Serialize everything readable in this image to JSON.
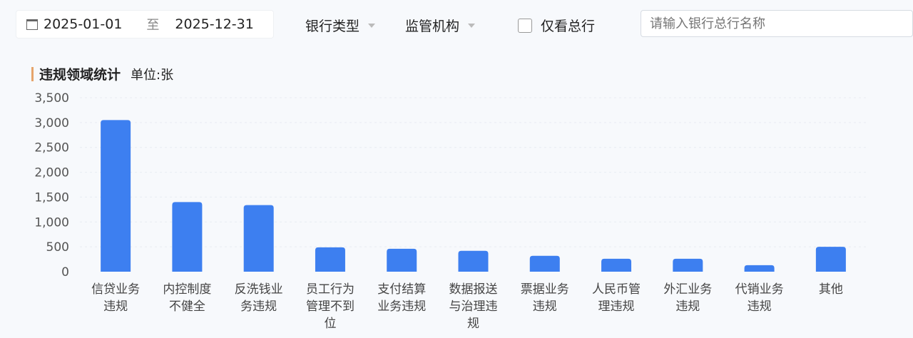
{
  "filters": {
    "date_start": "2025-01-01",
    "date_sep": "至",
    "date_end": "2025-12-31",
    "bank_type": "银行类型",
    "regulator": "监管机构",
    "head_office_only": "仅看总行",
    "head_office_checked": false,
    "search_placeholder": "请输入银行总行名称"
  },
  "chart_title": "违规领域统计",
  "unit": "单位:张",
  "colors": {
    "bar": "#3d7ff0",
    "title_accent": "#e6a46b"
  },
  "chart_data": {
    "type": "bar",
    "title": "违规领域统计",
    "ylabel": "单位:张",
    "ylim": [
      0,
      3500
    ],
    "yticks": [
      "0",
      "500",
      "1,000",
      "1,500",
      "2,000",
      "2,500",
      "3,000",
      "3,500"
    ],
    "grid": true,
    "categories": [
      "信贷业务违规",
      "内控制度不健全",
      "反洗钱业务违规",
      "员工行为管理不到位",
      "支付结算业务违规",
      "数据报送与治理违规",
      "票据业务违规",
      "人民币管理违规",
      "外汇业务违规",
      "代销业务违规",
      "其他"
    ],
    "values": [
      3050,
      1400,
      1340,
      490,
      460,
      420,
      320,
      260,
      260,
      130,
      500
    ]
  }
}
